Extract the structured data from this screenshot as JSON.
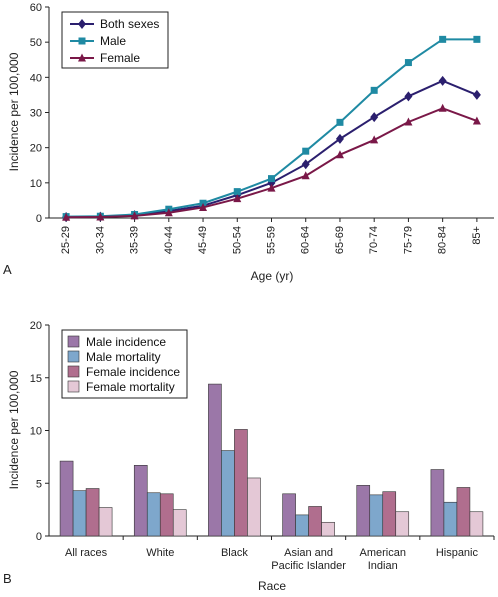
{
  "chart_data": [
    {
      "type": "line",
      "panel_label": "A",
      "x": [
        "25-29",
        "30-34",
        "35-39",
        "40-44",
        "45-49",
        "50-54",
        "55-59",
        "60-64",
        "65-69",
        "70-74",
        "75-79",
        "80-84",
        "85+"
      ],
      "xlabel": "Age (yr)",
      "ylabel": "Incidence per 100,000",
      "ylim": [
        0,
        60
      ],
      "yticks": [
        "0",
        "10",
        "20",
        "30",
        "40",
        "50",
        "60"
      ],
      "legend_position": "top-left",
      "series": [
        {
          "name": "Both sexes",
          "color": "#2b1f6e",
          "marker": "diamond",
          "values": [
            0.3,
            0.4,
            0.8,
            2.0,
            3.5,
            6.5,
            10.0,
            15.3,
            22.5,
            28.7,
            34.6,
            39.0,
            35.0
          ]
        },
        {
          "name": "Male",
          "color": "#1f8aa3",
          "marker": "square",
          "values": [
            0.4,
            0.5,
            1.0,
            2.5,
            4.2,
            7.5,
            11.2,
            19.0,
            27.2,
            36.3,
            44.2,
            50.8,
            50.8
          ]
        },
        {
          "name": "Female",
          "color": "#7a1848",
          "marker": "triangle",
          "values": [
            0.2,
            0.3,
            0.6,
            1.5,
            3.0,
            5.5,
            8.5,
            12.0,
            18.0,
            22.2,
            27.3,
            31.2,
            27.6
          ]
        }
      ]
    },
    {
      "type": "bar",
      "panel_label": "B",
      "categories": [
        "All races",
        "White",
        "Black",
        "Asian and Pacific Islander",
        "American Indian",
        "Hispanic"
      ],
      "category_lines": [
        [
          "All races"
        ],
        [
          "White"
        ],
        [
          "Black"
        ],
        [
          "Asian and",
          "Pacific Islander"
        ],
        [
          "American",
          "Indian"
        ],
        [
          "Hispanic"
        ]
      ],
      "xlabel": "Race",
      "ylabel": "Incidence per 100,000",
      "ylim": [
        0,
        20
      ],
      "yticks": [
        "0",
        "5",
        "10",
        "15",
        "20"
      ],
      "legend_position": "top-left",
      "series": [
        {
          "name": "Male incidence",
          "color": "#9b77a8",
          "values": [
            7.1,
            6.7,
            14.4,
            4.0,
            4.8,
            6.3
          ]
        },
        {
          "name": "Male mortality",
          "color": "#7ea7cc",
          "values": [
            4.3,
            4.1,
            8.1,
            2.0,
            3.9,
            3.2
          ]
        },
        {
          "name": "Female incidence",
          "color": "#b06e8e",
          "values": [
            4.5,
            4.0,
            10.1,
            2.8,
            4.2,
            4.6
          ]
        },
        {
          "name": "Female mortality",
          "color": "#e4c8d6",
          "values": [
            2.7,
            2.5,
            5.5,
            1.3,
            2.3,
            2.3
          ]
        }
      ]
    }
  ]
}
